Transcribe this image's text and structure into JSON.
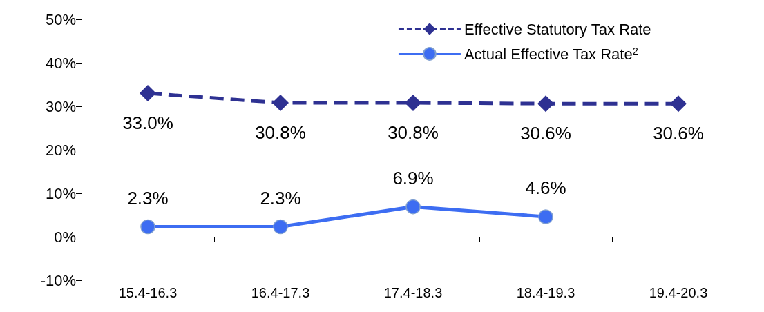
{
  "chart_data": {
    "type": "line",
    "categories": [
      "15.4-16.3",
      "16.4-17.3",
      "17.4-18.3",
      "18.4-19.3",
      "19.4-20.3"
    ],
    "series": [
      {
        "name": "Effective Statutory Tax Rate",
        "color": "#2e3192",
        "values": [
          33.0,
          30.8,
          30.8,
          30.6,
          30.6
        ],
        "marker": "diamond",
        "line_style": "dashed",
        "value_labels": [
          "33.0%",
          "30.8%",
          "30.8%",
          "30.6%",
          "30.6%"
        ]
      },
      {
        "name": "Actual Effective Tax Rate$^{2}$",
        "color": "#3d6df2",
        "values": [
          2.3,
          2.3,
          6.9,
          4.6,
          null
        ],
        "marker": "circle",
        "line_style": "solid",
        "value_labels": [
          "2.3%",
          "2.3%",
          "6.9%",
          "4.6%",
          null
        ]
      }
    ],
    "ylim": [
      -10,
      50
    ],
    "yticks": [
      {
        "value": -10,
        "label": "-10%"
      },
      {
        "value": 0,
        "label": "0%"
      },
      {
        "value": 10,
        "label": "10%"
      },
      {
        "value": 20,
        "label": "20%"
      },
      {
        "value": 30,
        "label": "30%"
      },
      {
        "value": 40,
        "label": "40%"
      },
      {
        "value": 50,
        "label": "50%"
      }
    ],
    "legend": "top right"
  }
}
